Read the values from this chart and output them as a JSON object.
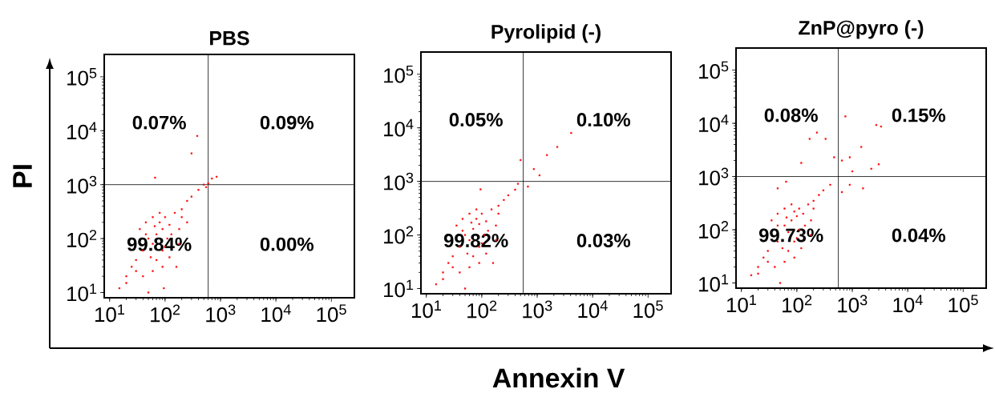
{
  "chart_data": [
    {
      "type": "scatter",
      "title": "PBS",
      "ylabel": "PI",
      "log": "xy",
      "marker": "square",
      "color": "#ff0000",
      "xlim": [
        8,
        260000
      ],
      "ylim": [
        8,
        260000
      ],
      "xticks": [
        {
          "value": 10,
          "label": "10$^{1}$"
        },
        {
          "value": 100,
          "label": "10$^{2}$"
        },
        {
          "value": 1000,
          "label": "10$^{3}$"
        },
        {
          "value": 10000,
          "label": "10$^{4}$"
        },
        {
          "value": 100000,
          "label": "10$^{5}$"
        }
      ],
      "yticks": [
        {
          "value": 10,
          "label": "10$^{1}$"
        },
        {
          "value": 100,
          "label": "10$^{2}$"
        },
        {
          "value": 1000,
          "label": "10$^{3}$"
        },
        {
          "value": 10000,
          "label": "10$^{4}$"
        },
        {
          "value": 100000,
          "label": "10$^{5}$"
        }
      ],
      "x": [
        50,
        70,
        90,
        60,
        80,
        100,
        120,
        150,
        40,
        55,
        70,
        100,
        130,
        200,
        250,
        300,
        400,
        500,
        550,
        35,
        45,
        60,
        80,
        30,
        25,
        20,
        30,
        40,
        60,
        90,
        120,
        180,
        200,
        110,
        90,
        45,
        65,
        180,
        15,
        20,
        50,
        95,
        300,
        700,
        850,
        600,
        66,
        380,
        160,
        250
      ],
      "values": [
        100,
        120,
        150,
        80,
        200,
        250,
        180,
        300,
        60,
        45,
        40,
        70,
        120,
        350,
        500,
        600,
        800,
        1000,
        900,
        150,
        200,
        250,
        300,
        40,
        30,
        20,
        25,
        20,
        25,
        30,
        45,
        150,
        250,
        100,
        60,
        120,
        170,
        80,
        12,
        15,
        10,
        12,
        3800,
        1300,
        1400,
        1050,
        1350,
        8000,
        30,
        200
      ],
      "ref_lines": [
        {
          "axis": "x",
          "value": 600
        },
        {
          "axis": "y",
          "value": 1000
        }
      ],
      "annotations": [
        "0.07%",
        "0.09%",
        "99.84%",
        "0.00%"
      ]
    },
    {
      "type": "scatter",
      "title": "Pyrolipid (-)",
      "xlabel": "Annexin V",
      "log": "xy",
      "marker": "square",
      "color": "#ff0000",
      "xlim": [
        8,
        260000
      ],
      "ylim": [
        8,
        260000
      ],
      "xticks": [
        {
          "value": 10,
          "label": "10$^{1}$"
        },
        {
          "value": 100,
          "label": "10$^{2}$"
        },
        {
          "value": 1000,
          "label": "10$^{3}$"
        },
        {
          "value": 10000,
          "label": "10$^{4}$"
        },
        {
          "value": 100000,
          "label": "10$^{5}$"
        }
      ],
      "yticks": [
        {
          "value": 10,
          "label": "10$^{1}$"
        },
        {
          "value": 100,
          "label": "10$^{2}$"
        },
        {
          "value": 1000,
          "label": "10$^{3}$"
        },
        {
          "value": 10000,
          "label": "10$^{4}$"
        },
        {
          "value": 100000,
          "label": "10$^{5}$"
        }
      ],
      "x": [
        50,
        70,
        90,
        60,
        80,
        100,
        120,
        150,
        40,
        55,
        70,
        100,
        130,
        200,
        250,
        300,
        400,
        450,
        35,
        45,
        60,
        80,
        30,
        25,
        20,
        30,
        40,
        60,
        90,
        120,
        180,
        200,
        110,
        90,
        45,
        65,
        180,
        15,
        20,
        50,
        4100,
        2300,
        1500,
        870,
        1100,
        500,
        680,
        95,
        160
      ],
      "values": [
        100,
        130,
        160,
        80,
        200,
        250,
        180,
        300,
        60,
        45,
        40,
        70,
        120,
        350,
        450,
        550,
        700,
        900,
        150,
        200,
        250,
        300,
        40,
        30,
        20,
        25,
        20,
        25,
        30,
        45,
        150,
        250,
        100,
        60,
        120,
        170,
        80,
        12,
        15,
        10,
        8000,
        4400,
        3100,
        1700,
        1300,
        2500,
        800,
        710,
        30
      ],
      "ref_lines": [
        {
          "axis": "x",
          "value": 560
        },
        {
          "axis": "y",
          "value": 1000
        }
      ],
      "annotations": [
        "0.05%",
        "0.10%",
        "99.82%",
        "0.03%"
      ]
    },
    {
      "type": "scatter",
      "title": "ZnP@pyro (-)",
      "log": "xy",
      "marker": "square",
      "color": "#ff0000",
      "xlim": [
        8,
        260000
      ],
      "ylim": [
        8,
        260000
      ],
      "xticks": [
        {
          "value": 10,
          "label": "10$^{1}$"
        },
        {
          "value": 100,
          "label": "10$^{2}$"
        },
        {
          "value": 1000,
          "label": "10$^{3}$"
        },
        {
          "value": 10000,
          "label": "10$^{4}$"
        },
        {
          "value": 100000,
          "label": "10$^{5}$"
        }
      ],
      "yticks": [
        {
          "value": 10,
          "label": "10$^{1}$"
        },
        {
          "value": 100,
          "label": "10$^{2}$"
        },
        {
          "value": 1000,
          "label": "10$^{3}$"
        },
        {
          "value": 10000,
          "label": "10$^{4}$"
        },
        {
          "value": 100000,
          "label": "10$^{5}$"
        }
      ],
      "x": [
        60,
        80,
        100,
        70,
        90,
        110,
        130,
        160,
        45,
        55,
        70,
        100,
        140,
        200,
        250,
        300,
        400,
        35,
        45,
        60,
        80,
        30,
        25,
        20,
        30,
        40,
        60,
        90,
        120,
        180,
        200,
        110,
        90,
        45,
        65,
        180,
        15,
        20,
        50,
        750,
        2700,
        3300,
        230,
        170,
        330,
        1450,
        120,
        470,
        900,
        3000,
        650,
        1000,
        2200,
        900,
        1560,
        650,
        64,
        45
      ],
      "values": [
        120,
        150,
        180,
        90,
        220,
        250,
        200,
        300,
        60,
        45,
        40,
        70,
        120,
        350,
        450,
        550,
        700,
        150,
        200,
        250,
        300,
        40,
        30,
        20,
        25,
        20,
        25,
        30,
        45,
        150,
        250,
        100,
        60,
        120,
        170,
        80,
        14,
        15,
        10,
        13500,
        9300,
        8700,
        6700,
        5100,
        5100,
        3600,
        1800,
        2300,
        2300,
        1700,
        2000,
        1250,
        1400,
        700,
        600,
        510,
        800,
        600
      ],
      "ref_lines": [
        {
          "axis": "x",
          "value": 560
        },
        {
          "axis": "y",
          "value": 1000
        }
      ],
      "annotations": [
        "0.08%",
        "0.15%",
        "99.73%",
        "0.04%"
      ]
    }
  ]
}
